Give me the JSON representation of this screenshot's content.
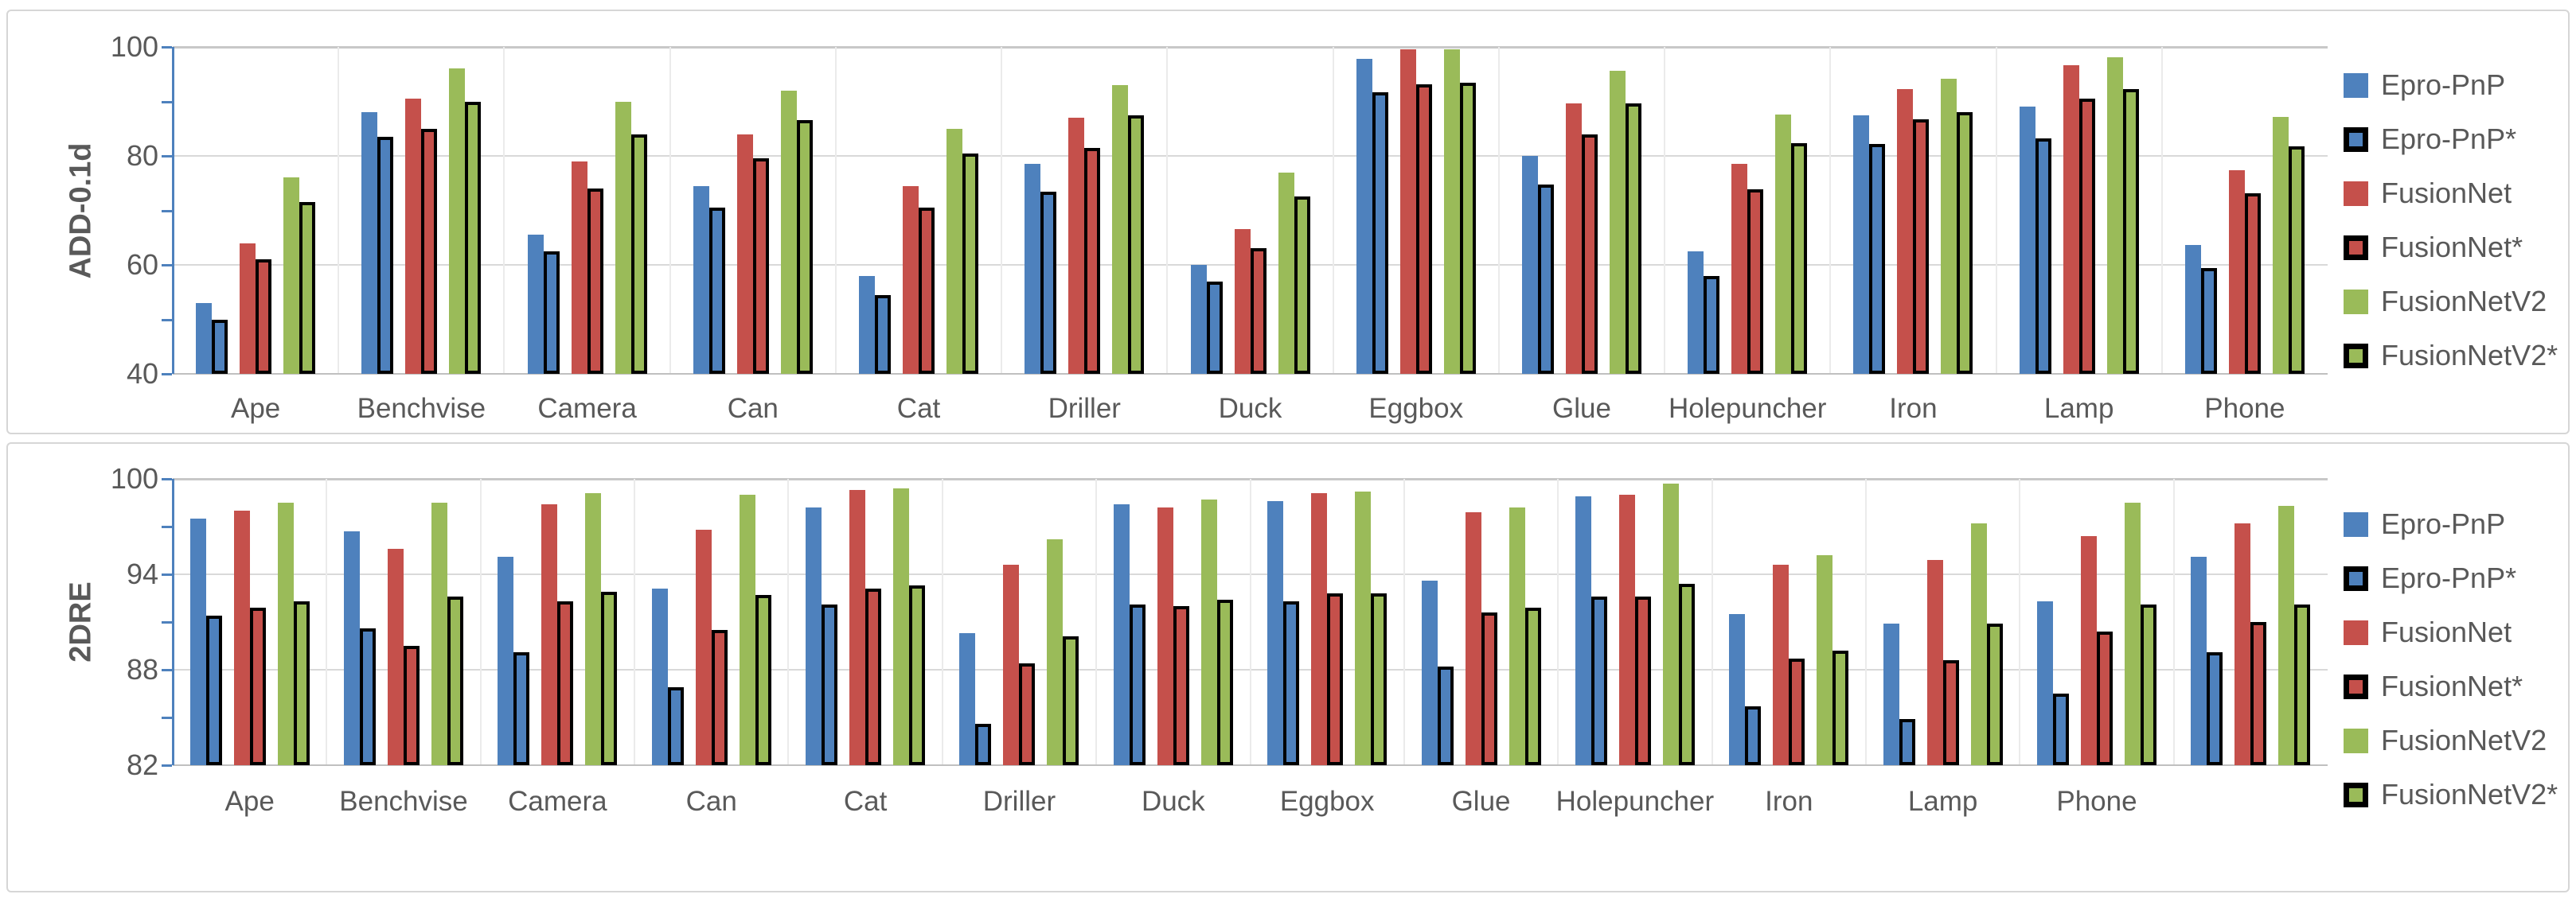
{
  "colors": {
    "series_blue": "#4e81bd",
    "series_red": "#c5504b",
    "series_green": "#9abb59",
    "star_outline": "#000000",
    "text": "#595959",
    "axis_line_blue": "#4e81bd",
    "gridline": "#d9d9d9",
    "panel_border": "#d6d6d6"
  },
  "legend": {
    "position": "right",
    "items": [
      {
        "label": "Epro-PnP",
        "color": "#4e81bd",
        "outlined": false
      },
      {
        "label": "Epro-PnP*",
        "color": "#4e81bd",
        "outlined": true
      },
      {
        "label": "FusionNet",
        "color": "#c5504b",
        "outlined": false
      },
      {
        "label": "FusionNet*",
        "color": "#c5504b",
        "outlined": true
      },
      {
        "label": "FusionNetV2",
        "color": "#9abb59",
        "outlined": false
      },
      {
        "label": "FusionNetV2*",
        "color": "#9abb59",
        "outlined": true
      }
    ]
  },
  "chart_data": [
    {
      "type": "bar",
      "title": "",
      "xlabel": "",
      "ylabel": "ADD-0.1d",
      "ylim": [
        40,
        100
      ],
      "yticks": [
        40,
        60,
        80,
        100
      ],
      "minor_tick_step": 10,
      "grid": true,
      "legend_position": "right",
      "categories": [
        "Ape",
        "Benchvise",
        "Camera",
        "Can",
        "Cat",
        "Driller",
        "Duck",
        "Eggbox",
        "Glue",
        "Holepuncher",
        "Iron",
        "Lamp",
        "Phone"
      ],
      "series": [
        {
          "name": "Epro-PnP",
          "color": "#4e81bd",
          "outlined": false,
          "values": [
            53,
            88,
            65.5,
            74.5,
            58,
            78.5,
            60,
            97.8,
            80,
            62.5,
            87.4,
            89,
            63.6
          ]
        },
        {
          "name": "Epro-PnP*",
          "color": "#4e81bd",
          "outlined": true,
          "values": [
            50,
            83.5,
            62.5,
            70.5,
            54.5,
            73.5,
            57,
            91.7,
            74.8,
            58,
            82.2,
            83.2,
            59.4
          ]
        },
        {
          "name": "FusionNet",
          "color": "#c5504b",
          "outlined": false,
          "values": [
            64,
            90.5,
            79,
            84,
            74.5,
            87,
            66.5,
            99.5,
            89.7,
            78.5,
            92.3,
            96.6,
            77.3
          ]
        },
        {
          "name": "FusionNet*",
          "color": "#c5504b",
          "outlined": true,
          "values": [
            61,
            85,
            74,
            79.5,
            70.5,
            81.5,
            63,
            93.2,
            84,
            73.8,
            86.7,
            90.5,
            73.1
          ]
        },
        {
          "name": "FusionNetV2",
          "color": "#9abb59",
          "outlined": false,
          "values": [
            76,
            96,
            90,
            92,
            85,
            93,
            77,
            99.5,
            95.6,
            87.6,
            94.2,
            98.1,
            87.1
          ]
        },
        {
          "name": "FusionNetV2*",
          "color": "#9abb59",
          "outlined": true,
          "values": [
            71.5,
            90,
            84,
            86.5,
            80.5,
            87.5,
            72.5,
            93.5,
            89.6,
            82.3,
            88.1,
            92.2,
            81.7
          ]
        }
      ]
    },
    {
      "type": "bar",
      "title": "",
      "xlabel": "",
      "ylabel": "2DRE",
      "ylim": [
        82,
        100
      ],
      "yticks": [
        82,
        88,
        94,
        100
      ],
      "minor_tick_step": 3,
      "grid": true,
      "legend_position": "right",
      "categories": [
        "Ape",
        "Benchvise",
        "Camera",
        "Can",
        "Cat",
        "Driller",
        "Duck",
        "Eggbox",
        "Glue",
        "Holepuncher",
        "Iron",
        "Lamp",
        "Phone",
        ""
      ],
      "series": [
        {
          "name": "Epro-PnP",
          "color": "#4e81bd",
          "outlined": false,
          "values": [
            97.5,
            96.7,
            95.1,
            93.1,
            98.2,
            90.3,
            98.4,
            98.6,
            93.6,
            98.9,
            91.5,
            90.9,
            92.3,
            95.1
          ]
        },
        {
          "name": "Epro-PnP*",
          "color": "#4e81bd",
          "outlined": true,
          "values": [
            91.4,
            90.6,
            89.1,
            86.9,
            92.1,
            84.6,
            92.1,
            92.3,
            88.2,
            92.6,
            85.7,
            84.9,
            86.5,
            89.1
          ]
        },
        {
          "name": "FusionNet",
          "color": "#c5504b",
          "outlined": false,
          "values": [
            98,
            95.6,
            98.4,
            96.8,
            99.3,
            94.6,
            98.2,
            99.1,
            97.9,
            99,
            94.6,
            94.9,
            96.4,
            97.2
          ]
        },
        {
          "name": "FusionNet*",
          "color": "#c5504b",
          "outlined": true,
          "values": [
            91.9,
            89.5,
            92.3,
            90.5,
            93.1,
            88.4,
            92,
            92.8,
            91.6,
            92.6,
            88.7,
            88.6,
            90.4,
            91
          ]
        },
        {
          "name": "FusionNetV2",
          "color": "#9abb59",
          "outlined": false,
          "values": [
            98.5,
            98.5,
            99.1,
            99,
            99.4,
            96.2,
            98.7,
            99.2,
            98.2,
            99.7,
            95.2,
            97.2,
            98.5,
            98.3
          ]
        },
        {
          "name": "FusionNetV2*",
          "color": "#9abb59",
          "outlined": true,
          "values": [
            92.3,
            92.6,
            92.9,
            92.7,
            93.3,
            90.1,
            92.4,
            92.8,
            91.9,
            93.4,
            89.2,
            90.9,
            92.1,
            92.1
          ]
        }
      ]
    }
  ]
}
